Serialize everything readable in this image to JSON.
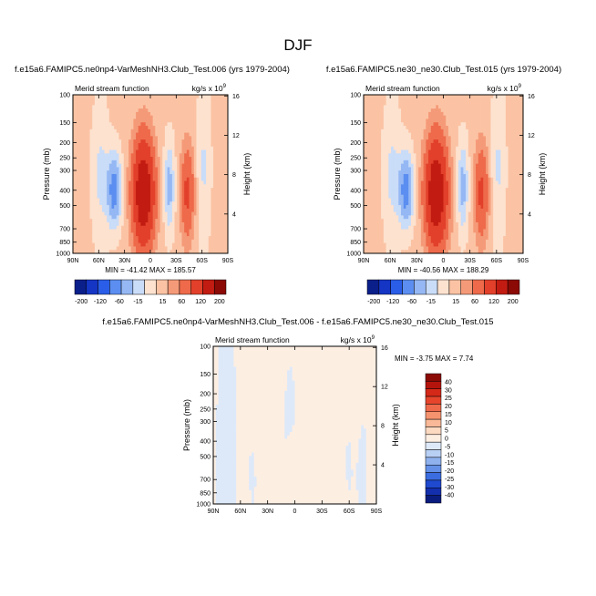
{
  "page_title": "DJF",
  "chart_data": [
    {
      "type": "heatmap",
      "title": "f.e15a6.FAMIPC5.ne0np4-VarMeshNH3.Club_Test.006 (yrs 1979-2004)",
      "subtitle": "Merid stream function",
      "units": "kg/s x 10",
      "units_exponent": "9",
      "ylabel": "Pressure (mb)",
      "ylabel_right": "Height (km)",
      "x_ticks": [
        "90N",
        "60N",
        "30N",
        "0",
        "30S",
        "60S",
        "90S"
      ],
      "y_ticks": [
        "100",
        "150",
        "200",
        "250",
        "300",
        "400",
        "500",
        "700",
        "850",
        "1000"
      ],
      "height_ticks": [
        "16",
        "12",
        "8",
        "4"
      ],
      "min_label": "MIN = -41.42",
      "max_label": "MAX = 185.57",
      "min": -41.42,
      "max": 185.57,
      "colorbar_labels": [
        "-200",
        "-120",
        "-60",
        "-15",
        "15",
        "60",
        "120",
        "200"
      ],
      "colorbar_colors": [
        "#0b1f8a",
        "#1535c4",
        "#2a5ee8",
        "#5b8ef0",
        "#95b8f4",
        "#c9dcf8",
        "#fde2cf",
        "#fbc3a4",
        "#f59a78",
        "#ee6a4a",
        "#e2402a",
        "#c21c12",
        "#8b0a05"
      ]
    },
    {
      "type": "heatmap",
      "title": "f.e15a6.FAMIPC5.ne30_ne30.Club_Test.015 (yrs 1979-2004)",
      "subtitle": "Merid stream function",
      "units": "kg/s x 10",
      "units_exponent": "9",
      "ylabel": "Pressure (mb)",
      "ylabel_right": "Height (km)",
      "x_ticks": [
        "90N",
        "60N",
        "30N",
        "0",
        "30S",
        "60S",
        "90S"
      ],
      "y_ticks": [
        "100",
        "150",
        "200",
        "250",
        "300",
        "400",
        "500",
        "700",
        "850",
        "1000"
      ],
      "height_ticks": [
        "16",
        "12",
        "8",
        "4"
      ],
      "min_label": "MIN = -40.56",
      "max_label": "MAX = 188.29",
      "min": -40.56,
      "max": 188.29,
      "colorbar_labels": [
        "-200",
        "-120",
        "-60",
        "-15",
        "15",
        "60",
        "120",
        "200"
      ],
      "colorbar_colors": [
        "#0b1f8a",
        "#1535c4",
        "#2a5ee8",
        "#5b8ef0",
        "#95b8f4",
        "#c9dcf8",
        "#fde2cf",
        "#fbc3a4",
        "#f59a78",
        "#ee6a4a",
        "#e2402a",
        "#c21c12",
        "#8b0a05"
      ]
    },
    {
      "type": "heatmap",
      "title": "f.e15a6.FAMIPC5.ne0np4-VarMeshNH3.Club_Test.006 - f.e15a6.FAMIPC5.ne30_ne30.Club_Test.015",
      "subtitle": "Merid stream function",
      "units": "kg/s x 10",
      "units_exponent": "9",
      "ylabel": "Pressure (mb)",
      "ylabel_right": "Height (km)",
      "x_ticks": [
        "90N",
        "60N",
        "30N",
        "0",
        "30S",
        "60S",
        "90S"
      ],
      "y_ticks": [
        "100",
        "150",
        "200",
        "250",
        "300",
        "400",
        "500",
        "700",
        "850",
        "1000"
      ],
      "height_ticks": [
        "16",
        "12",
        "8",
        "4"
      ],
      "min_label": "MIN = -3.75",
      "max_label": "MAX =  7.74",
      "min": -3.75,
      "max": 7.74,
      "colorbar_labels": [
        "40",
        "30",
        "25",
        "20",
        "15",
        "10",
        "5",
        "0",
        "-5",
        "-10",
        "-15",
        "-20",
        "-25",
        "-30",
        "-40"
      ],
      "colorbar_colors": [
        "#8b0a05",
        "#b5140c",
        "#d42818",
        "#e6452c",
        "#ef6a4b",
        "#f5936f",
        "#f9b897",
        "#fcd9c1",
        "#fdeee2",
        "#dde9f9",
        "#b8d0f4",
        "#8fb2ee",
        "#6490e8",
        "#3b6ce0",
        "#1f49cf",
        "#142fae",
        "#0a1c7e"
      ]
    }
  ]
}
